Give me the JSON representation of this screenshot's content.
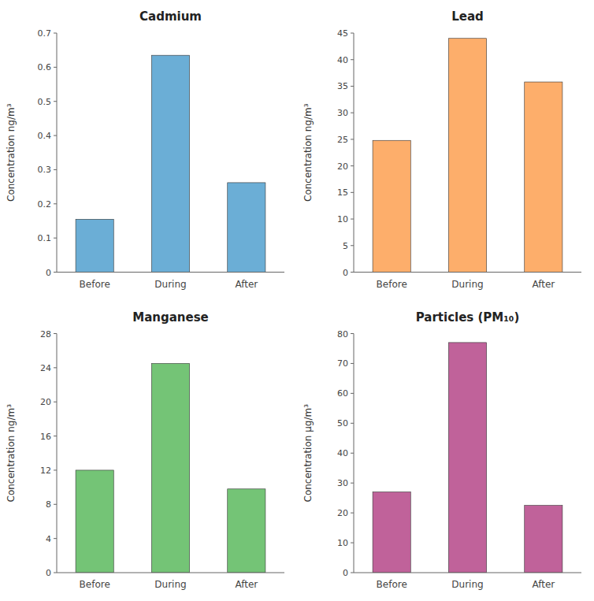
{
  "chart_data": [
    {
      "type": "bar",
      "title": "Cadmium",
      "categories": [
        "Before",
        "During",
        "After"
      ],
      "values": [
        0.155,
        0.635,
        0.262
      ],
      "color": "#6BAED6",
      "ylabel": "Concentration ng/m³",
      "ylim": [
        0,
        0.7
      ],
      "yticks": [
        0,
        0.1,
        0.2,
        0.3,
        0.4,
        0.5,
        0.6,
        0.7
      ]
    },
    {
      "type": "bar",
      "title": "Lead",
      "categories": [
        "Before",
        "During",
        "After"
      ],
      "values": [
        24.8,
        44.0,
        35.8
      ],
      "color": "#FDAE6B",
      "ylabel": "Concentration ng/m³",
      "ylim": [
        0,
        45
      ],
      "yticks": [
        0,
        5,
        10,
        15,
        20,
        25,
        30,
        35,
        40,
        45
      ]
    },
    {
      "type": "bar",
      "title": "Manganese",
      "categories": [
        "Before",
        "During",
        "After"
      ],
      "values": [
        12.0,
        24.5,
        9.8
      ],
      "color": "#74C476",
      "ylabel": "Concentration ng/m³",
      "ylim": [
        0,
        28
      ],
      "yticks": [
        0,
        4,
        8,
        12,
        16,
        20,
        24,
        28
      ]
    },
    {
      "type": "bar",
      "title": "Particles (PM₁₀)",
      "categories": [
        "Before",
        "During",
        "After"
      ],
      "values": [
        27.0,
        77.0,
        22.5
      ],
      "color": "#C0629A",
      "ylabel": "Concentration μg/m³",
      "ylim": [
        0,
        80
      ],
      "yticks": [
        0,
        10,
        20,
        30,
        40,
        50,
        60,
        70,
        80
      ]
    }
  ]
}
